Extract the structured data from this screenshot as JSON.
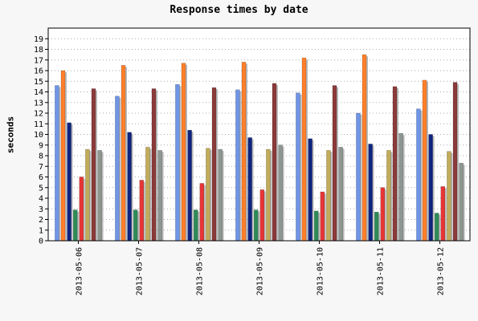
{
  "chart_data": {
    "type": "bar",
    "title": "Response times by date",
    "xlabel": "",
    "ylabel": "seconds",
    "ylim": [
      0,
      20
    ],
    "yticks": [
      0,
      1,
      2,
      3,
      4,
      5,
      6,
      7,
      8,
      9,
      10,
      11,
      12,
      13,
      14,
      15,
      16,
      17,
      18,
      19
    ],
    "grid": true,
    "categories": [
      "2013-05-06",
      "2013-05-07",
      "2013-05-08",
      "2013-05-09",
      "2013-05-10",
      "2013-05-11",
      "2013-05-12"
    ],
    "series": [
      {
        "color": "#6f95e6",
        "values": [
          14.6,
          13.6,
          14.7,
          14.2,
          13.9,
          12.0,
          12.4
        ]
      },
      {
        "color": "#ff7f2a",
        "values": [
          16.0,
          16.5,
          16.7,
          16.8,
          17.2,
          17.5,
          15.1
        ]
      },
      {
        "color": "#0f2480",
        "values": [
          11.1,
          10.2,
          10.4,
          9.7,
          9.6,
          9.1,
          10.0
        ]
      },
      {
        "color": "#2e8b57",
        "values": [
          2.9,
          2.9,
          2.9,
          2.9,
          2.8,
          2.7,
          2.6
        ]
      },
      {
        "color": "#e83535",
        "values": [
          6.0,
          5.7,
          5.4,
          4.8,
          4.6,
          5.0,
          5.1
        ]
      },
      {
        "color": "#c2ac5a",
        "values": [
          8.6,
          8.8,
          8.7,
          8.6,
          8.5,
          8.5,
          8.4
        ]
      },
      {
        "color": "#8b3a3a",
        "values": [
          14.3,
          14.3,
          14.4,
          14.8,
          14.6,
          14.5,
          14.9
        ]
      },
      {
        "color": "#8d9690",
        "values": [
          8.5,
          8.5,
          8.6,
          9.0,
          8.8,
          10.1,
          7.3
        ]
      }
    ]
  }
}
